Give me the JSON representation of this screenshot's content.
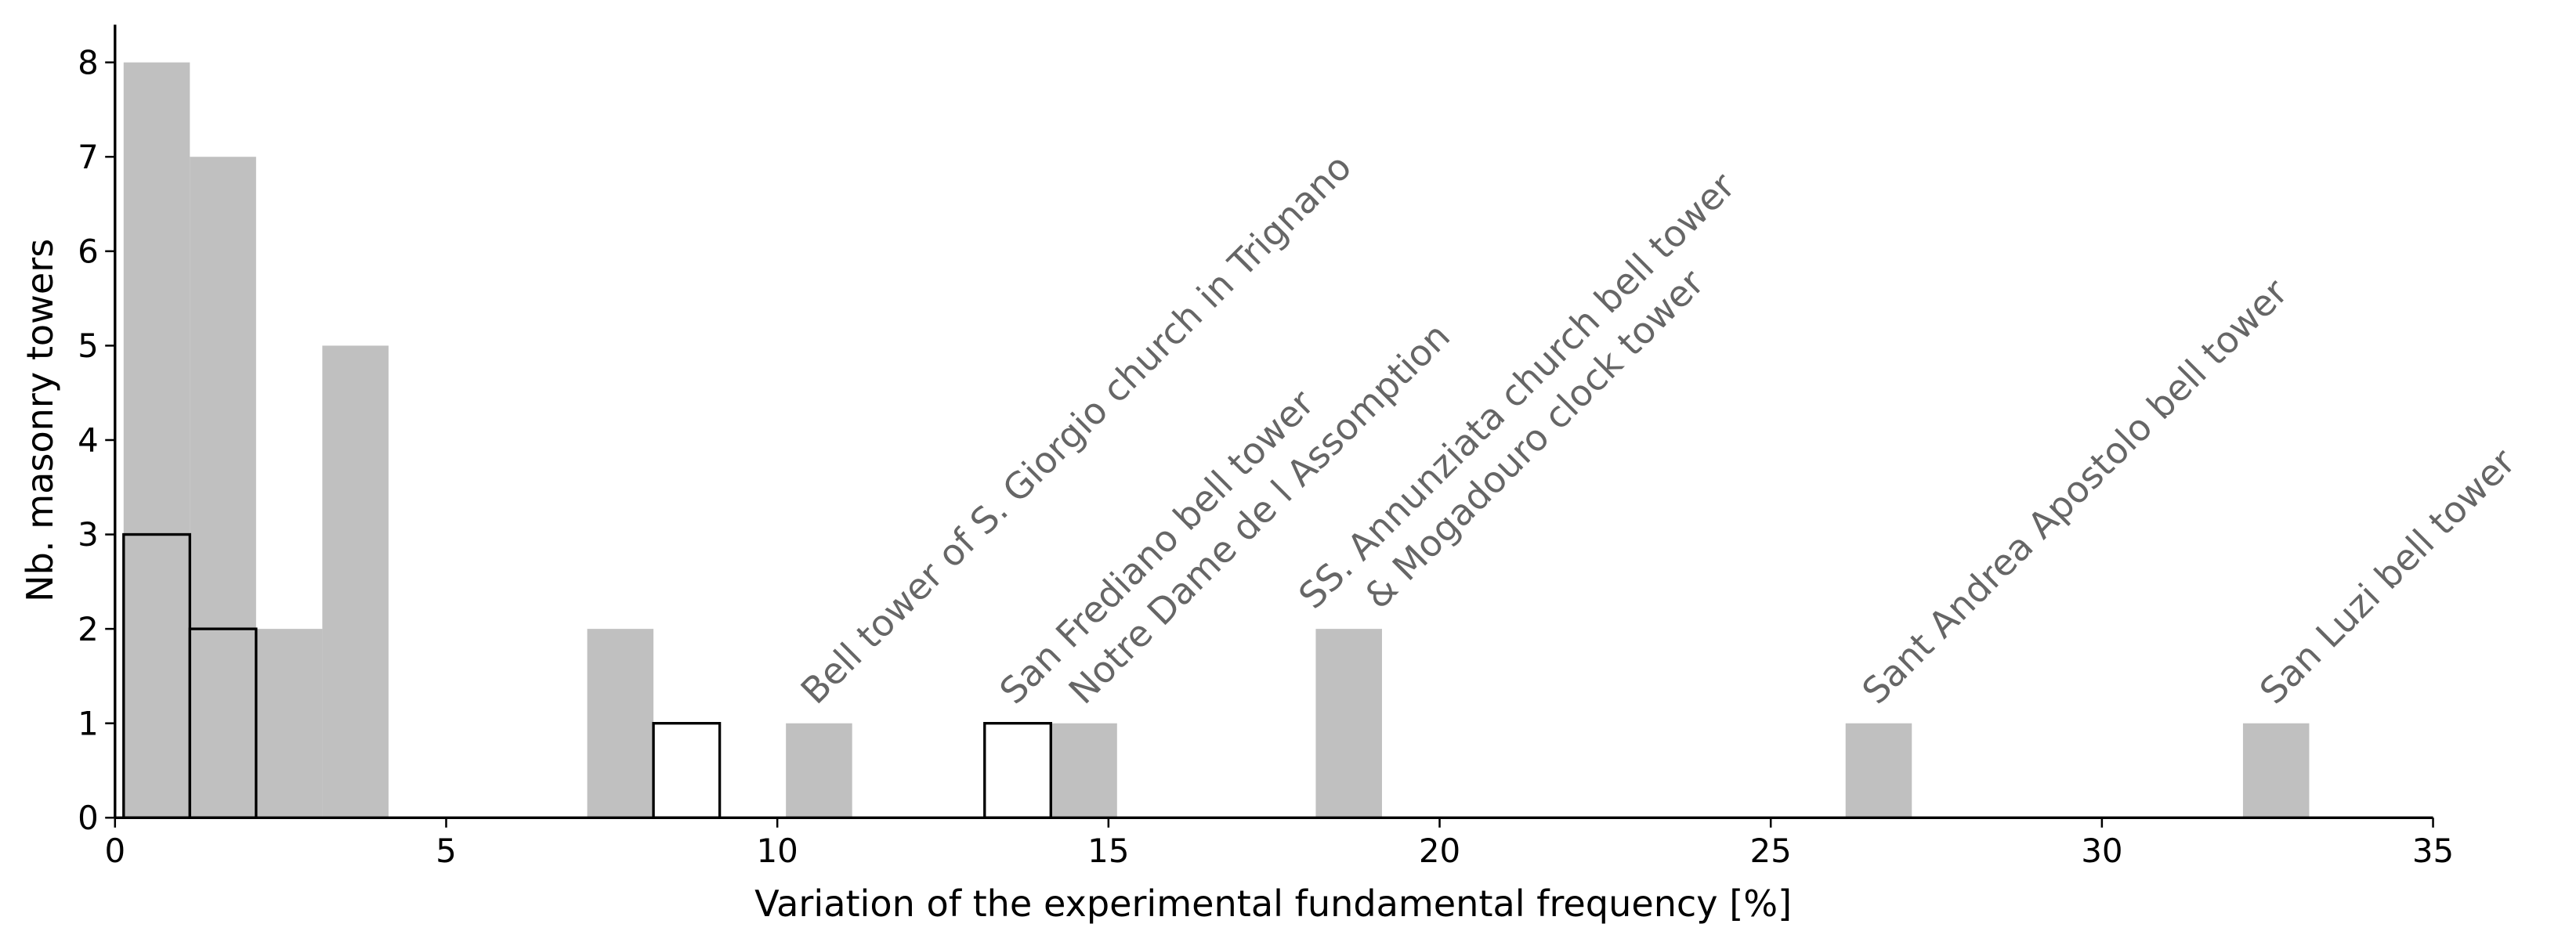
{
  "chart_data": {
    "type": "histogram",
    "xlabel": "Variation of the experimental fundamental frequency [%]",
    "ylabel": "Nb. masonry towers",
    "bins": [
      0.13,
      1.13,
      2.13,
      3.13,
      4.13,
      5.13,
      6.13,
      7.13,
      8.13,
      9.13,
      10.13,
      11.13,
      12.13,
      13.13,
      14.13,
      15.13,
      16.13,
      17.13,
      18.13,
      19.13,
      20.13,
      21.13,
      22.13,
      23.13,
      24.13,
      25.13,
      26.13,
      27.13,
      28.13,
      29.13,
      30.13,
      31.13,
      32.13,
      33.13
    ],
    "series": [
      {
        "color": "#c0c0c0",
        "fill": true,
        "values": [
          8,
          7,
          2,
          5,
          0,
          0,
          0,
          2,
          0,
          0,
          1,
          0,
          0,
          0,
          1,
          0,
          0,
          0,
          2,
          0,
          0,
          0,
          0,
          0,
          0,
          0,
          1,
          0,
          0,
          0,
          0,
          0,
          1
        ]
      },
      {
        "color": "#000000",
        "fill": false,
        "values": [
          3,
          2,
          0,
          0,
          0,
          0,
          0,
          0,
          1,
          0,
          0,
          0,
          0,
          1,
          0,
          0,
          0,
          0,
          0,
          0,
          0,
          0,
          0,
          0,
          0,
          0,
          0,
          0,
          0,
          0,
          0,
          0,
          0
        ]
      }
    ],
    "xlim": [
      0,
      35
    ],
    "xticks": [
      0,
      5,
      10,
      15,
      20,
      25,
      30,
      35
    ],
    "ylim": [
      0,
      8.4
    ],
    "yticks": [
      0,
      1,
      2,
      3,
      4,
      5,
      6,
      7,
      8
    ],
    "annotations": [
      "Bell tower of S. Giorgio church in Trignano",
      "San Frediano bell tower",
      "Notre Dame de l Assomption",
      "SS. Annunziata church bell tower",
      "& Mogadouro clock tower",
      "Sant Andrea Apostolo bell tower",
      "San Luzi bell tower"
    ]
  }
}
